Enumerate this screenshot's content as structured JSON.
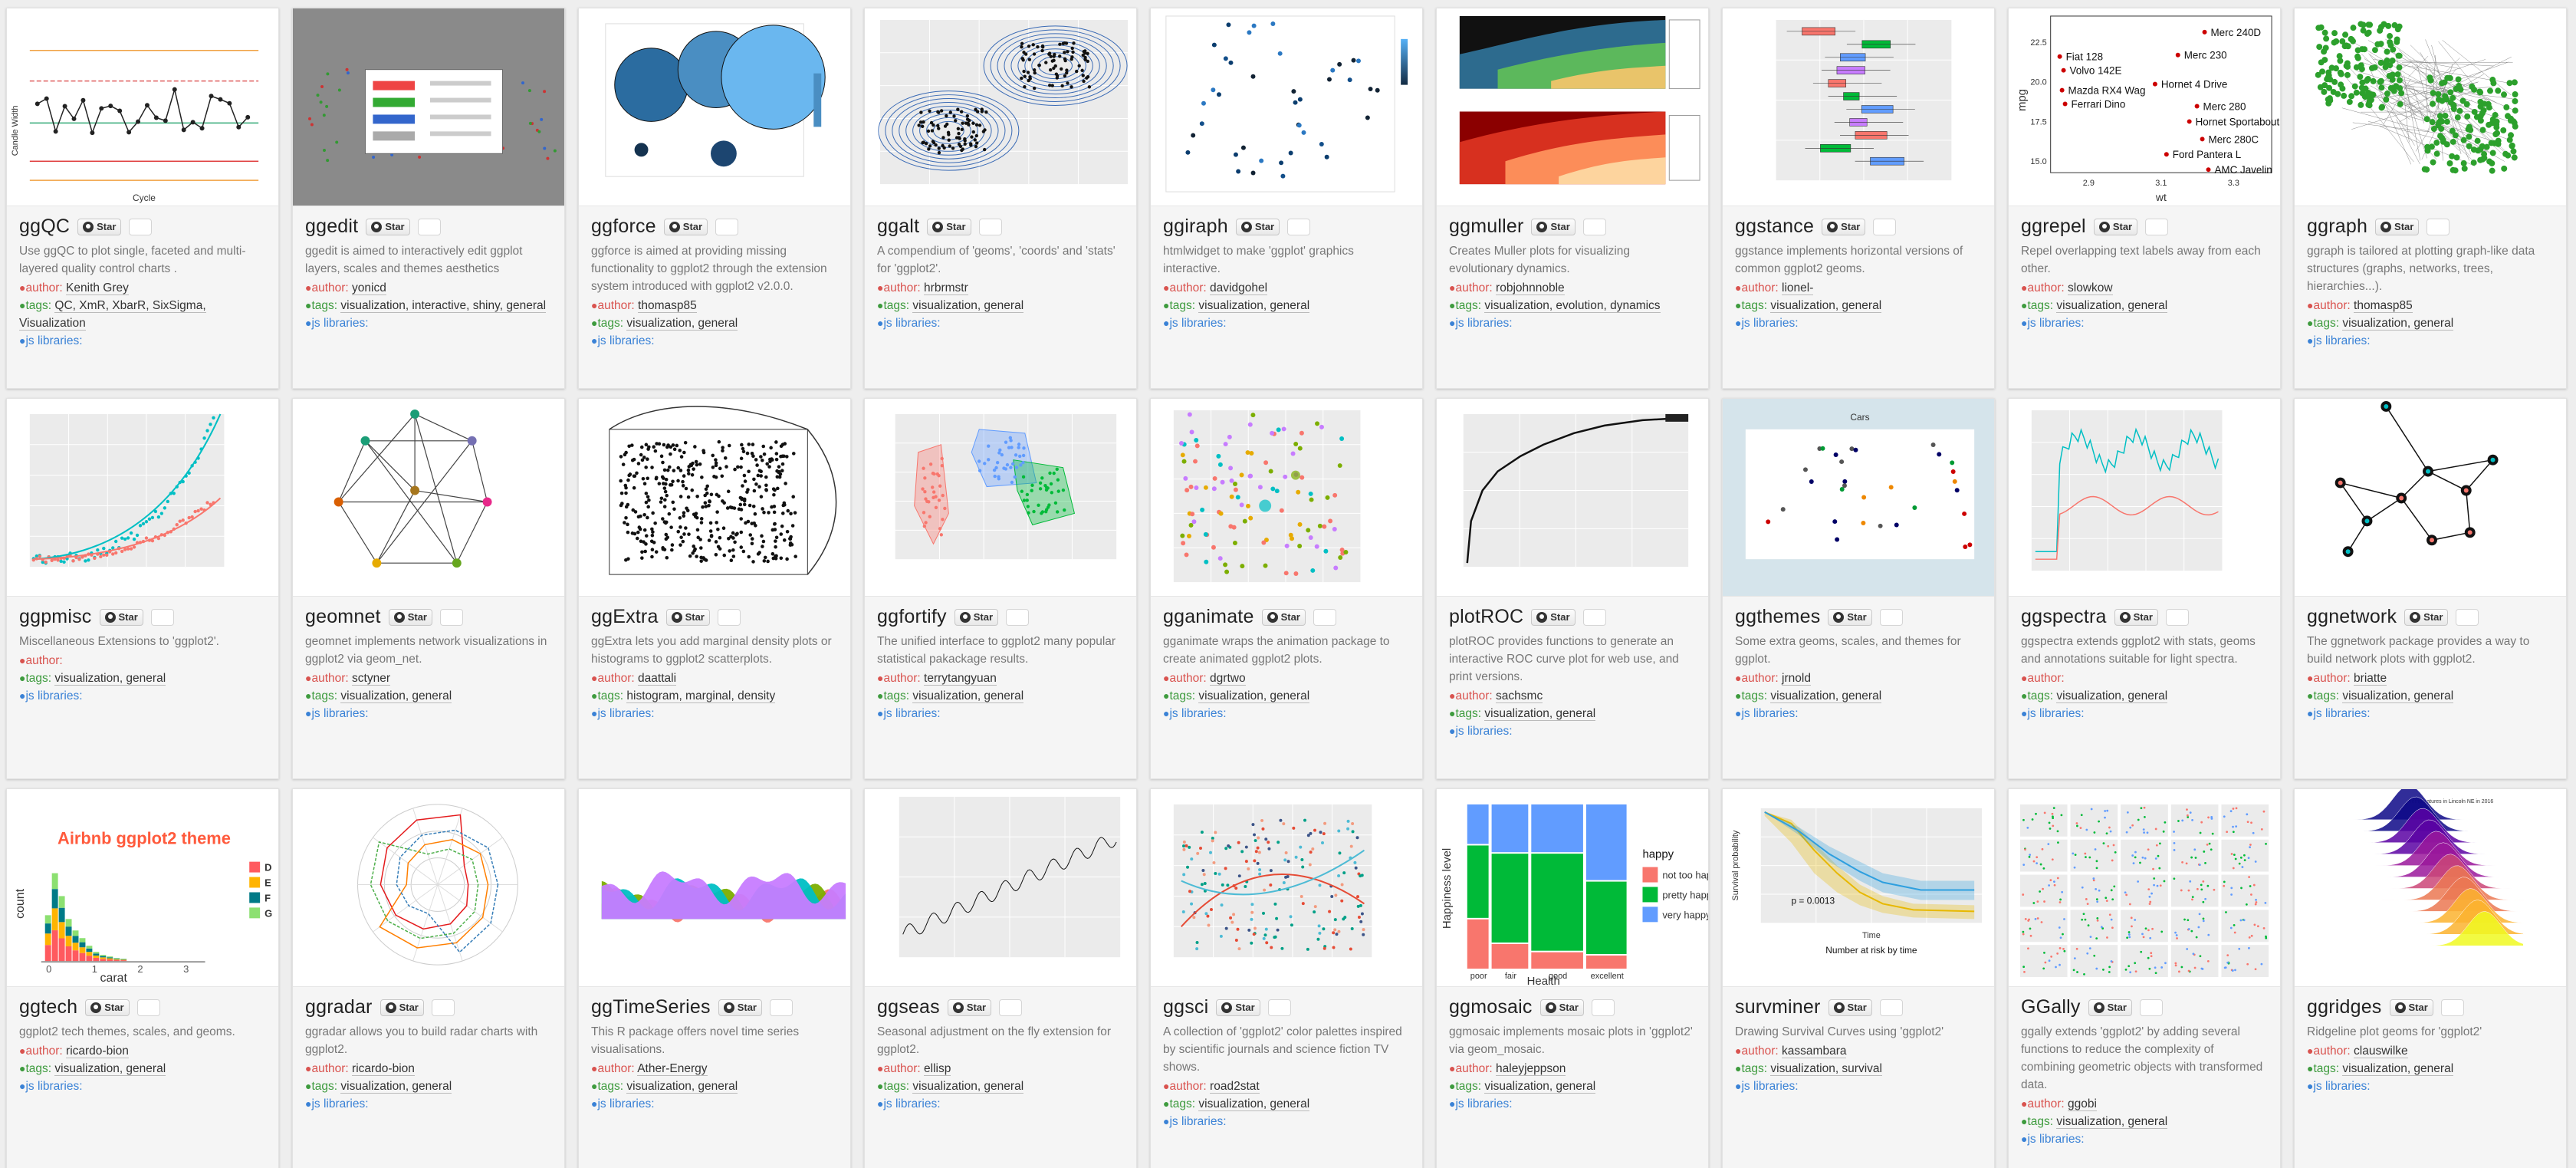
{
  "star_label": "Star",
  "labels": {
    "author": "author:",
    "tags": "tags:",
    "js": "js libraries:"
  },
  "packages": [
    {
      "name": "ggQC",
      "thumb": "qc",
      "desc": "Use ggQC to plot single, faceted and multi-layered quality control charts .",
      "author": "Kenith Grey",
      "tags": "QC, XmR, XbarR, SixSigma, Visualization"
    },
    {
      "name": "ggedit",
      "thumb": "edit",
      "desc": "ggedit is aimed to interactively edit ggplot layers, scales and themes aesthetics",
      "author": "yonicd",
      "tags": "visualization, interactive, shiny, general"
    },
    {
      "name": "ggforce",
      "thumb": "force",
      "desc": "ggforce is aimed at providing missing functionality to ggplot2 through the extension system introduced with ggplot2 v2.0.0.",
      "author": "thomasp85",
      "tags": "visualization, general"
    },
    {
      "name": "ggalt",
      "thumb": "alt",
      "desc": "A compendium of 'geoms', 'coords' and 'stats' for 'ggplot2'.",
      "author": "hrbrmstr",
      "tags": "visualization, general"
    },
    {
      "name": "ggiraph",
      "thumb": "iraph",
      "desc": "htmlwidget to make 'ggplot' graphics interactive.",
      "author": "davidgohel",
      "tags": "visualization, general"
    },
    {
      "name": "ggmuller",
      "thumb": "muller",
      "desc": "Creates Muller plots for visualizing evolutionary dynamics.",
      "author": "robjohnnoble",
      "tags": "visualization, evolution, dynamics"
    },
    {
      "name": "ggstance",
      "thumb": "stance",
      "desc": "ggstance implements horizontal versions of common ggplot2 geoms.",
      "author": "lionel-",
      "tags": "visualization, general"
    },
    {
      "name": "ggrepel",
      "thumb": "repel",
      "desc": "Repel overlapping text labels away from each other.",
      "author": "slowkow",
      "tags": "visualization, general"
    },
    {
      "name": "ggraph",
      "thumb": "graph",
      "desc": "ggraph is tailored at plotting graph-like data structures (graphs, networks, trees, hierarchies...).",
      "author": "thomasp85",
      "tags": "visualization, general"
    },
    {
      "name": "ggpmisc",
      "thumb": "pmisc",
      "desc": "Miscellaneous Extensions to 'ggplot2'.",
      "author": "",
      "tags": "visualization, general"
    },
    {
      "name": "geomnet",
      "thumb": "geomnet",
      "desc": "geomnet implements network visualizations in ggplot2 via geom_net.",
      "author": "sctyner",
      "tags": "visualization, general"
    },
    {
      "name": "ggExtra",
      "thumb": "extra",
      "desc": "ggExtra lets you add marginal density plots or histograms to ggplot2 scatterplots.",
      "author": "daattali",
      "tags": "histogram, marginal, density"
    },
    {
      "name": "ggfortify",
      "thumb": "fortify",
      "desc": "The unified interface to ggplot2 many popular statistical pakackage results.",
      "author": "terrytangyuan",
      "tags": "visualization, general"
    },
    {
      "name": "gganimate",
      "thumb": "animate",
      "desc": "gganimate wraps the animation package to create animated ggplot2 plots.",
      "author": "dgrtwo",
      "tags": "visualization, general"
    },
    {
      "name": "plotROC",
      "thumb": "roc",
      "desc": "plotROC provides functions to generate an interactive ROC curve plot for web use, and print versions.",
      "author": "sachsmc",
      "tags": "visualization, general"
    },
    {
      "name": "ggthemes",
      "thumb": "themes",
      "desc": "Some extra geoms, scales, and themes for ggplot.",
      "author": "jrnold",
      "tags": "visualization, general"
    },
    {
      "name": "ggspectra",
      "thumb": "spectra",
      "desc": "ggspectra extends ggplot2 with stats, geoms and annotations suitable for light spectra.",
      "author": "",
      "tags": "visualization, general"
    },
    {
      "name": "ggnetwork",
      "thumb": "network",
      "desc": "The ggnetwork package provides a way to build network plots with ggplot2.",
      "author": "briatte",
      "tags": "visualization, general"
    },
    {
      "name": "ggtech",
      "thumb": "tech",
      "desc": "ggplot2 tech themes, scales, and geoms.",
      "author": "ricardo-bion",
      "tags": "visualization, general"
    },
    {
      "name": "ggradar",
      "thumb": "radar",
      "desc": "ggradar allows you to build radar charts with ggplot2.",
      "author": "ricardo-bion",
      "tags": "visualization, general"
    },
    {
      "name": "ggTimeSeries",
      "thumb": "timeseries",
      "desc": "This R package offers novel time series visualisations.",
      "author": "Ather-Energy",
      "tags": "visualization, general"
    },
    {
      "name": "ggseas",
      "thumb": "seas",
      "desc": "Seasonal adjustment on the fly extension for ggplot2.",
      "author": "ellisp",
      "tags": "visualization, general"
    },
    {
      "name": "ggsci",
      "thumb": "sci",
      "desc": "A collection of 'ggplot2' color palettes inspired by scientific journals and science fiction TV shows.",
      "author": "road2stat",
      "tags": "visualization, general"
    },
    {
      "name": "ggmosaic",
      "thumb": "mosaic",
      "desc": "ggmosaic implements mosaic plots in 'ggplot2' via geom_mosaic.",
      "author": "haleyjeppson",
      "tags": "visualization, general"
    },
    {
      "name": "survminer",
      "thumb": "surv",
      "desc": "Drawing Survival Curves using 'ggplot2'",
      "author": "kassambara",
      "tags": "visualization, survival"
    },
    {
      "name": "GGally",
      "thumb": "gally",
      "desc": "ggally extends 'ggplot2' by adding several functions to reduce the complexity of combining geometric objects with transformed data.",
      "author": "ggobi",
      "tags": "visualization, general"
    },
    {
      "name": "ggridges",
      "thumb": "ridges",
      "desc": "Ridgeline plot geoms for 'ggplot2'",
      "author": "clauswilke",
      "tags": "visualization, general"
    }
  ],
  "thumb_text": {
    "tech_title": "Airbnb ggplot2 theme",
    "tech_ylabel": "count",
    "tech_xlabel": "carat",
    "tech_legend": [
      "D",
      "E",
      "F",
      "G"
    ],
    "tech_xticks": [
      "0",
      "1",
      "2",
      "3"
    ],
    "mosaic_ylabel": "Happiness level",
    "mosaic_xlabel": "Health",
    "mosaic_legend_title": "happy",
    "mosaic_legend": [
      "not too happy",
      "pretty happy",
      "very happy"
    ],
    "mosaic_xticks": [
      "poor",
      "fair",
      "good",
      "excellent"
    ],
    "repel_labels": [
      "Merc 240D",
      "Merc 230",
      "Volvo 142E",
      "Mazda RX4 Wag",
      "Ferrari Dino",
      "Hornet 4 Drive",
      "Merc 280",
      "Hornet Sportabout",
      "Merc 280C",
      "Fiat 128",
      "Ford Pantera L",
      "AMC Javelin"
    ],
    "repel_ylabel": "mpg",
    "repel_xlabel": "wt",
    "repel_yticks": [
      "22.5",
      "20.0",
      "17.5",
      "15.0"
    ],
    "repel_xticks": [
      "2.9",
      "3.1",
      "3.3"
    ],
    "surv_ylabel": "Survival probability",
    "surv_pval": "p = 0.0013",
    "surv_risk": "Number at risk by time",
    "surv_xlabel": "Time",
    "qc_ylabel": "Candle Width",
    "qc_xlabel": "Cycle",
    "themes_title": "Cars",
    "ridges_title": "Temperatures in Lincoln NE in 2016"
  }
}
